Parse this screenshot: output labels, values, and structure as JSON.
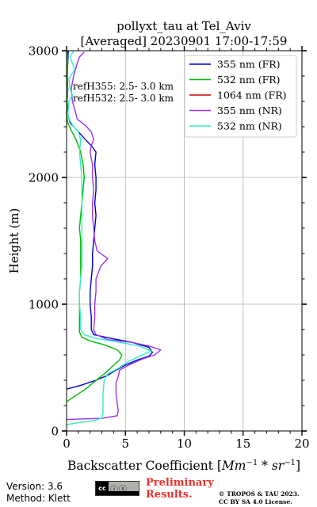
{
  "chart_data": {
    "type": "line",
    "title_line1": "pollyxt_tau at Tel_Aviv",
    "title_line2": "[Averaged] 20230901 17:00-17:59",
    "xlabel": "Backscatter Coefficient [",
    "xlabel_math": "Mm",
    "xlabel_sup1": "−1",
    "xlabel_mid": " * sr",
    "xlabel_sup2": "−1",
    "xlabel_end": "]",
    "ylabel": "Height (m)",
    "xlim": [
      0,
      20
    ],
    "ylim": [
      0,
      3000
    ],
    "xticks": [
      0,
      5,
      10,
      15,
      20
    ],
    "xtick_labels": [
      "0",
      "5",
      "10",
      "15",
      "20"
    ],
    "yticks": [
      0,
      1000,
      2000,
      3000
    ],
    "ytick_labels": [
      "0",
      "1000",
      "2000",
      "3000"
    ],
    "grid": true,
    "legend_position": "top-right",
    "annotations": [
      "refH355:  2.5- 3.0 km",
      "refH532:  2.5- 3.0 km"
    ],
    "series": [
      {
        "name": "355 nm (FR)",
        "color": "#0000cc",
        "points": [
          [
            0,
            330
          ],
          [
            1.2,
            360
          ],
          [
            2.5,
            400
          ],
          [
            3.5,
            440
          ],
          [
            4.2,
            480
          ],
          [
            5.0,
            520
          ],
          [
            6.0,
            560
          ],
          [
            7.0,
            590
          ],
          [
            7.3,
            620
          ],
          [
            7.0,
            660
          ],
          [
            5.5,
            700
          ],
          [
            3.8,
            730
          ],
          [
            2.3,
            760
          ],
          [
            2.1,
            800
          ],
          [
            2.1,
            900
          ],
          [
            2.0,
            1000
          ],
          [
            2.0,
            1100
          ],
          [
            2.1,
            1200
          ],
          [
            2.2,
            1300
          ],
          [
            2.2,
            1400
          ],
          [
            2.3,
            1500
          ],
          [
            2.4,
            1600
          ],
          [
            2.5,
            1700
          ],
          [
            2.4,
            1800
          ],
          [
            2.5,
            1900
          ],
          [
            2.5,
            2000
          ],
          [
            2.4,
            2100
          ],
          [
            2.5,
            2200
          ],
          [
            2.2,
            2240
          ],
          [
            1.8,
            2280
          ],
          [
            1.3,
            2330
          ],
          [
            0.8,
            2380
          ],
          [
            0.3,
            2430
          ],
          [
            0.1,
            2500
          ],
          [
            0.05,
            2600
          ],
          [
            0.1,
            2700
          ],
          [
            0.05,
            2800
          ],
          [
            0.1,
            2900
          ],
          [
            0.15,
            3000
          ]
        ]
      },
      {
        "name": "532 nm (FR)",
        "color": "#00bb00",
        "points": [
          [
            0,
            230
          ],
          [
            0.8,
            280
          ],
          [
            1.6,
            330
          ],
          [
            2.4,
            390
          ],
          [
            3.2,
            450
          ],
          [
            3.9,
            510
          ],
          [
            4.5,
            560
          ],
          [
            4.7,
            600
          ],
          [
            4.3,
            640
          ],
          [
            3.2,
            680
          ],
          [
            2.0,
            710
          ],
          [
            1.3,
            740
          ],
          [
            1.1,
            780
          ],
          [
            1.1,
            900
          ],
          [
            1.1,
            1000
          ],
          [
            1.1,
            1100
          ],
          [
            1.2,
            1200
          ],
          [
            1.2,
            1300
          ],
          [
            1.2,
            1400
          ],
          [
            1.2,
            1500
          ],
          [
            1.1,
            1600
          ],
          [
            1.2,
            1700
          ],
          [
            1.3,
            1800
          ],
          [
            1.4,
            1900
          ],
          [
            1.5,
            2000
          ],
          [
            1.4,
            2100
          ],
          [
            1.2,
            2200
          ],
          [
            0.8,
            2300
          ],
          [
            0.4,
            2370
          ],
          [
            0.1,
            2430
          ],
          [
            0.0,
            2500
          ],
          [
            0.05,
            2600
          ],
          [
            0.1,
            2700
          ],
          [
            0.0,
            2800
          ],
          [
            0.1,
            2900
          ],
          [
            0.05,
            3000
          ]
        ]
      },
      {
        "name": "1064 nm (FR)",
        "color": "#cc0000",
        "points": []
      },
      {
        "name": "355 nm (NR)",
        "color": "#9933ee",
        "points": [
          [
            0,
            90
          ],
          [
            1.5,
            95
          ],
          [
            3.0,
            100
          ],
          [
            4.3,
            120
          ],
          [
            4.4,
            160
          ],
          [
            4.3,
            220
          ],
          [
            4.2,
            300
          ],
          [
            4.2,
            380
          ],
          [
            4.4,
            430
          ],
          [
            4.5,
            480
          ],
          [
            5.5,
            530
          ],
          [
            6.5,
            570
          ],
          [
            7.5,
            600
          ],
          [
            8.0,
            640
          ],
          [
            7.0,
            670
          ],
          [
            5.5,
            700
          ],
          [
            3.5,
            720
          ],
          [
            2.5,
            760
          ],
          [
            2.3,
            800
          ],
          [
            2.4,
            900
          ],
          [
            2.4,
            1000
          ],
          [
            2.5,
            1100
          ],
          [
            2.5,
            1200
          ],
          [
            2.9,
            1300
          ],
          [
            3.5,
            1360
          ],
          [
            2.6,
            1420
          ],
          [
            2.4,
            1500
          ],
          [
            2.3,
            1600
          ],
          [
            2.2,
            1700
          ],
          [
            2.2,
            1800
          ],
          [
            2.3,
            1900
          ],
          [
            2.2,
            2000
          ],
          [
            2.2,
            2100
          ],
          [
            2.0,
            2200
          ],
          [
            2.1,
            2250
          ],
          [
            2.3,
            2300
          ],
          [
            2.1,
            2360
          ],
          [
            1.6,
            2410
          ],
          [
            1.2,
            2440
          ],
          [
            0.9,
            2460
          ],
          [
            0.8,
            2500
          ],
          [
            0.5,
            2600
          ],
          [
            0.4,
            2700
          ],
          [
            0.6,
            2800
          ],
          [
            0.9,
            2900
          ],
          [
            1.1,
            2950
          ],
          [
            1.5,
            2990
          ]
        ]
      },
      {
        "name": "532 nm (NR)",
        "color": "#33eec0",
        "points": [
          [
            0,
            50
          ],
          [
            1.0,
            65
          ],
          [
            2.2,
            80
          ],
          [
            3.0,
            100
          ],
          [
            3.1,
            150
          ],
          [
            3.1,
            200
          ],
          [
            3.1,
            300
          ],
          [
            3.2,
            400
          ],
          [
            3.5,
            450
          ],
          [
            4.5,
            500
          ],
          [
            5.3,
            550
          ],
          [
            6.2,
            590
          ],
          [
            7.2,
            630
          ],
          [
            6.2,
            670
          ],
          [
            4.5,
            700
          ],
          [
            2.5,
            730
          ],
          [
            1.5,
            760
          ],
          [
            1.2,
            800
          ],
          [
            1.2,
            900
          ],
          [
            1.1,
            1000
          ],
          [
            1.1,
            1100
          ],
          [
            1.2,
            1200
          ],
          [
            1.3,
            1300
          ],
          [
            1.3,
            1400
          ],
          [
            1.3,
            1500
          ],
          [
            1.3,
            1600
          ],
          [
            1.3,
            1700
          ],
          [
            1.3,
            1800
          ],
          [
            1.3,
            1900
          ],
          [
            1.3,
            2000
          ],
          [
            1.2,
            2100
          ],
          [
            1.1,
            2200
          ],
          [
            1.2,
            2300
          ],
          [
            1.0,
            2360
          ],
          [
            0.6,
            2400
          ],
          [
            0.2,
            2460
          ],
          [
            0.1,
            2500
          ],
          [
            0.2,
            2600
          ],
          [
            0.5,
            2650
          ],
          [
            0.3,
            2700
          ],
          [
            0.2,
            2780
          ],
          [
            0.7,
            2850
          ],
          [
            0.5,
            2900
          ],
          [
            0.3,
            2950
          ],
          [
            0.6,
            3000
          ]
        ]
      }
    ]
  },
  "footer": {
    "version": "Version: 3.6",
    "method": "Method: Klett",
    "cc_badge": "cc",
    "preliminary_line1": "Preliminary",
    "preliminary_line2": "Results.",
    "copyright_line1": "© TROPOS & TAU 2023.",
    "copyright_line2": "CC BY SA 4.0 License."
  }
}
